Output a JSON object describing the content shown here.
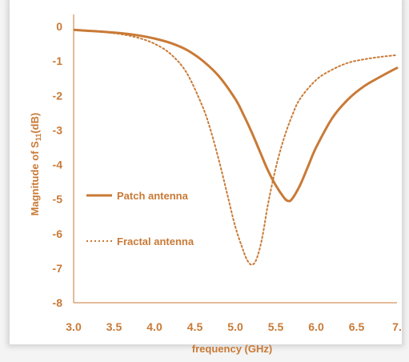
{
  "colors": {
    "series": "#c97a36",
    "axis": "#c97a36",
    "text": "#c97a36"
  },
  "chart_data": {
    "type": "line",
    "title": "",
    "xlabel": "frequency (GHz)",
    "ylabel": "Magnitude of S",
    "ylabel_subscript": "11",
    "ylabel_unit": "(dB)",
    "xlim": [
      3.0,
      7.0
    ],
    "ylim": [
      -8,
      0
    ],
    "x_ticks": [
      "3.0",
      "3.5",
      "4.0",
      "4.5",
      "5.0",
      "5.5",
      "6.0",
      "6.5",
      "7."
    ],
    "y_ticks": [
      "0",
      "-1",
      "-2",
      "-3",
      "-4",
      "-5",
      "-6",
      "-7",
      "-8"
    ],
    "grid": false,
    "legend_position": "left",
    "series": [
      {
        "name": "Patch antenna",
        "style": "solid",
        "x": [
          3.0,
          3.2,
          3.4,
          3.6,
          3.8,
          4.0,
          4.2,
          4.4,
          4.6,
          4.8,
          5.0,
          5.1,
          5.2,
          5.3,
          5.4,
          5.5,
          5.6,
          5.65,
          5.7,
          5.8,
          5.9,
          6.0,
          6.2,
          6.4,
          6.6,
          6.8,
          7.0
        ],
        "y": [
          -0.1,
          -0.13,
          -0.16,
          -0.2,
          -0.26,
          -0.35,
          -0.48,
          -0.68,
          -1.0,
          -1.45,
          -2.1,
          -2.55,
          -3.05,
          -3.6,
          -4.15,
          -4.6,
          -4.95,
          -5.05,
          -5.0,
          -4.6,
          -4.05,
          -3.5,
          -2.65,
          -2.1,
          -1.72,
          -1.45,
          -1.2
        ]
      },
      {
        "name": "Fractal antenna",
        "style": "dotted",
        "x": [
          3.0,
          3.2,
          3.4,
          3.6,
          3.8,
          4.0,
          4.2,
          4.4,
          4.6,
          4.7,
          4.8,
          4.9,
          5.0,
          5.1,
          5.15,
          5.2,
          5.25,
          5.3,
          5.35,
          5.4,
          5.5,
          5.6,
          5.7,
          5.8,
          6.0,
          6.2,
          6.4,
          6.6,
          6.8,
          7.0
        ],
        "y": [
          -0.1,
          -0.13,
          -0.17,
          -0.23,
          -0.33,
          -0.5,
          -0.8,
          -1.35,
          -2.35,
          -3.05,
          -3.9,
          -4.85,
          -5.8,
          -6.5,
          -6.78,
          -6.9,
          -6.8,
          -6.45,
          -5.9,
          -5.2,
          -4.1,
          -3.25,
          -2.6,
          -2.1,
          -1.55,
          -1.25,
          -1.05,
          -0.95,
          -0.88,
          -0.83
        ]
      }
    ]
  }
}
